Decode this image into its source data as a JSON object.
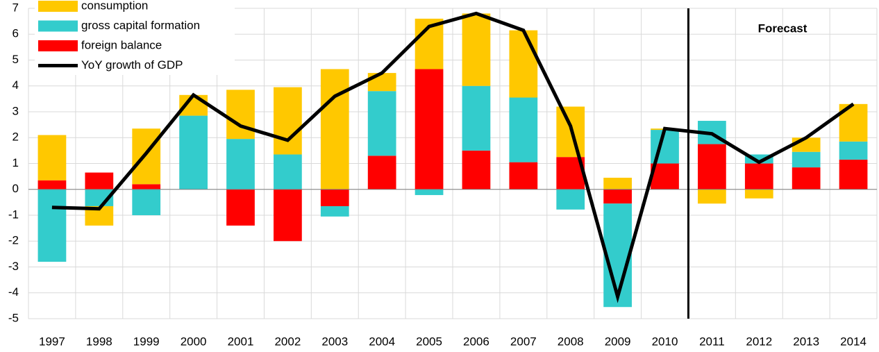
{
  "chart_data": {
    "type": "bar",
    "categories": [
      "1997",
      "1998",
      "1999",
      "2000",
      "2001",
      "2002",
      "2003",
      "2004",
      "2005",
      "2006",
      "2007",
      "2008",
      "2009",
      "2010",
      "2011",
      "2012",
      "2013",
      "2014"
    ],
    "series": [
      {
        "name": "consumption",
        "type": "bar",
        "color": "#ffc800",
        "values": [
          1.75,
          -0.75,
          2.15,
          0.8,
          1.9,
          2.6,
          4.65,
          0.7,
          1.95,
          2.8,
          2.6,
          1.95,
          0.45,
          0.05,
          -0.55,
          -0.35,
          0.55,
          1.45
        ]
      },
      {
        "name": "gross capital formation",
        "type": "bar",
        "color": "#33cccc",
        "values": [
          -2.8,
          -0.65,
          -1.0,
          2.85,
          1.95,
          1.35,
          -0.4,
          2.5,
          -0.22,
          2.5,
          2.5,
          -0.78,
          -4.0,
          1.3,
          0.9,
          0.35,
          0.6,
          0.7
        ]
      },
      {
        "name": "foreign balance",
        "type": "bar",
        "color": "#ff0000",
        "values": [
          0.35,
          0.65,
          0.2,
          0,
          -1.4,
          -2.0,
          -0.65,
          1.3,
          4.65,
          1.5,
          1.05,
          1.25,
          -0.55,
          1.0,
          1.75,
          1.0,
          0.85,
          1.15
        ]
      },
      {
        "name": "YoY growth of GDP",
        "type": "line",
        "color": "#000000",
        "values": [
          -0.7,
          -0.75,
          1.4,
          3.65,
          2.45,
          1.9,
          3.6,
          4.5,
          6.3,
          6.8,
          6.15,
          2.45,
          -4.15,
          2.35,
          2.15,
          1.05,
          2.0,
          3.3
        ]
      }
    ],
    "ylim": [
      -5,
      7
    ],
    "yticks": [
      -5,
      -4,
      -3,
      -2,
      -1,
      0,
      1,
      2,
      3,
      4,
      5,
      6,
      7
    ],
    "grid": true,
    "legend": "top-left",
    "annotation": "Forecast"
  }
}
